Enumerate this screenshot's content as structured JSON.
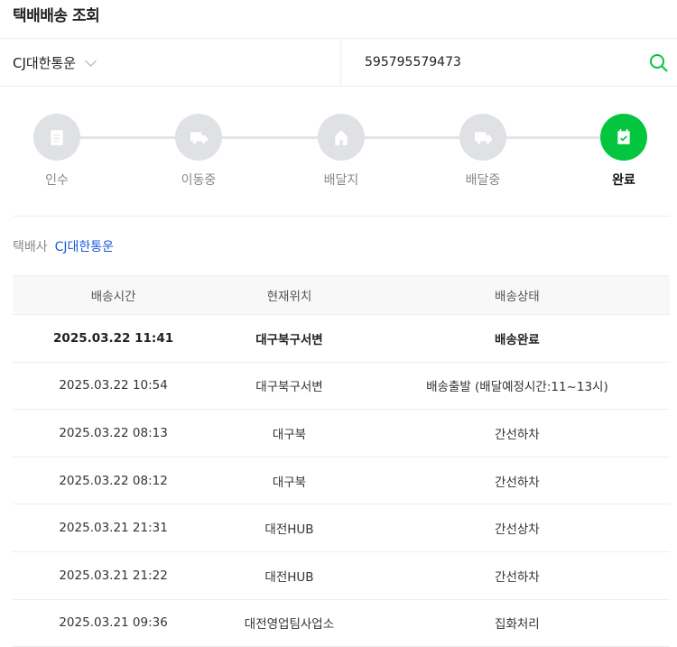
{
  "header": {
    "title": "택배배송 조회"
  },
  "search": {
    "carrier": "CJ대한통운",
    "tracking_number": "595795579473",
    "accent": "#03c63e"
  },
  "steps": [
    {
      "label": "인수",
      "icon": "document-icon",
      "active": false
    },
    {
      "label": "이동중",
      "icon": "truck-icon",
      "active": false
    },
    {
      "label": "배달지",
      "icon": "house-icon",
      "active": false
    },
    {
      "label": "배달중",
      "icon": "truck-icon",
      "active": false
    },
    {
      "label": "완료",
      "icon": "calendar-check-icon",
      "active": true
    }
  ],
  "carrier_info": {
    "label": "택배사",
    "value": "CJ대한통운"
  },
  "table": {
    "headers": [
      "배송시간",
      "현재위치",
      "배송상태"
    ],
    "rows": [
      [
        "2025.03.22 11:41",
        "대구북구서변",
        "배송완료"
      ],
      [
        "2025.03.22 10:54",
        "대구북구서변",
        "배송출발 (배달예정시간:11~13시)"
      ],
      [
        "2025.03.22 08:13",
        "대구북",
        "간선하차"
      ],
      [
        "2025.03.22 08:12",
        "대구북",
        "간선하차"
      ],
      [
        "2025.03.21 21:31",
        "대전HUB",
        "간선상차"
      ],
      [
        "2025.03.21 21:22",
        "대전HUB",
        "간선하차"
      ],
      [
        "2025.03.21 09:36",
        "대전영업팀사업소",
        "집화처리"
      ]
    ]
  }
}
